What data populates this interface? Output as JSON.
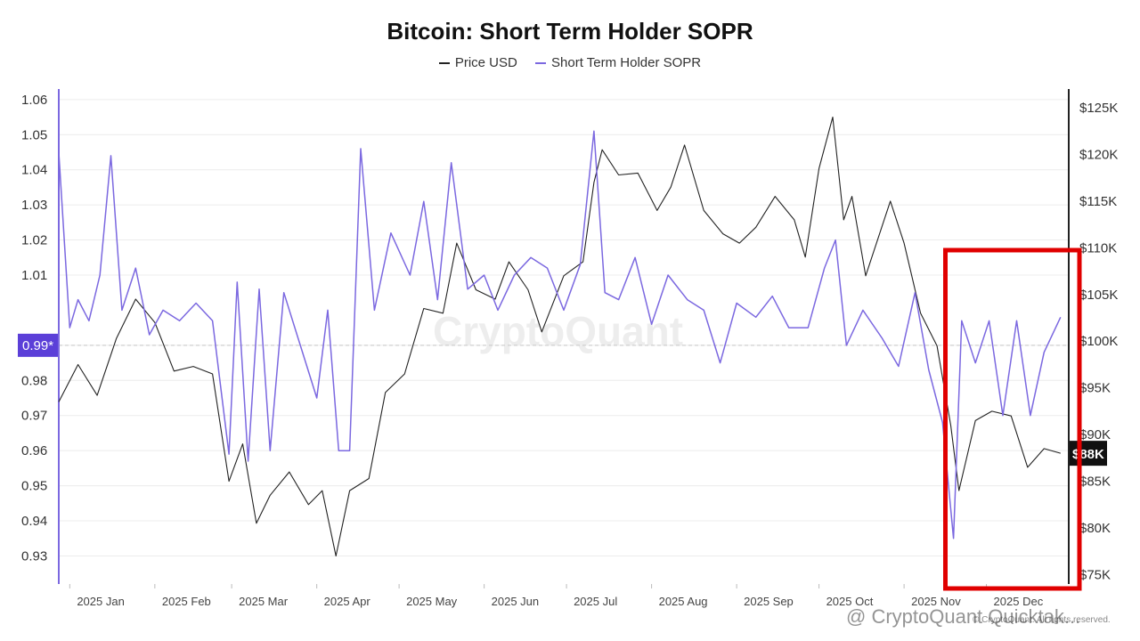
{
  "chart_data": {
    "type": "line",
    "title": "Bitcoin: Short Term Holder SOPR",
    "legend_position": "top-center",
    "grid": true,
    "x_ticks": [
      "2025 Jan",
      "2025 Feb",
      "2025 Mar",
      "2025 Apr",
      "2025 May",
      "2025 Jun",
      "2025 Jul",
      "2025 Aug",
      "2025 Sep",
      "2025 Oct",
      "2025 Nov",
      "2025 Dec"
    ],
    "x_range": [
      "2024-12-28",
      "2025-12-31"
    ],
    "left_axis": {
      "ticks": [
        "0.93",
        "0.94",
        "0.95",
        "0.96",
        "0.97",
        "0.98",
        "0.99",
        "1.01",
        "1.02",
        "1.03",
        "1.04",
        "1.05",
        "1.06"
      ],
      "ylim": [
        0.922,
        1.063
      ],
      "reference_value": 0.99,
      "reference_label": "0.99*"
    },
    "right_axis": {
      "ticks": [
        "$75K",
        "$80K",
        "$85K",
        "$90K",
        "$95K",
        "$100K",
        "$105K",
        "$110K",
        "$115K",
        "$120K",
        "$125K"
      ],
      "ylim": [
        74000,
        127000
      ],
      "current_label": "$88K",
      "current_value": 88000
    },
    "series": [
      {
        "name": "Price USD",
        "axis": "right",
        "color": "#222222",
        "x": [
          "2024-12-28",
          "2025-01-04",
          "2025-01-11",
          "2025-01-18",
          "2025-01-25",
          "2025-02-01",
          "2025-02-08",
          "2025-02-15",
          "2025-02-22",
          "2025-02-28",
          "2025-03-05",
          "2025-03-10",
          "2025-03-15",
          "2025-03-22",
          "2025-03-29",
          "2025-04-03",
          "2025-04-08",
          "2025-04-13",
          "2025-04-20",
          "2025-04-26",
          "2025-05-03",
          "2025-05-10",
          "2025-05-17",
          "2025-05-22",
          "2025-05-29",
          "2025-06-05",
          "2025-06-10",
          "2025-06-17",
          "2025-06-22",
          "2025-06-30",
          "2025-07-07",
          "2025-07-11",
          "2025-07-14",
          "2025-07-20",
          "2025-07-27",
          "2025-08-03",
          "2025-08-08",
          "2025-08-13",
          "2025-08-20",
          "2025-08-27",
          "2025-09-02",
          "2025-09-08",
          "2025-09-15",
          "2025-09-22",
          "2025-09-26",
          "2025-10-01",
          "2025-10-06",
          "2025-10-10",
          "2025-10-13",
          "2025-10-18",
          "2025-10-27",
          "2025-11-01",
          "2025-11-07",
          "2025-11-13",
          "2025-11-18",
          "2025-11-21",
          "2025-11-27",
          "2025-12-03",
          "2025-12-10",
          "2025-12-16",
          "2025-12-22",
          "2025-12-28"
        ],
        "y": [
          93500,
          97500,
          94200,
          100300,
          104500,
          102000,
          96800,
          97300,
          96500,
          85000,
          89000,
          80500,
          83500,
          86000,
          82500,
          84000,
          77000,
          84000,
          85300,
          94500,
          96500,
          103500,
          103000,
          110500,
          105500,
          104500,
          108500,
          105500,
          101000,
          107000,
          108500,
          117000,
          120500,
          117800,
          118000,
          114000,
          116500,
          121000,
          114000,
          111500,
          110500,
          112200,
          115500,
          113000,
          109000,
          118500,
          124000,
          113000,
          115500,
          107000,
          115000,
          110500,
          103000,
          99500,
          91000,
          84000,
          91500,
          92500,
          92000,
          86500,
          88500,
          88000
        ]
      },
      {
        "name": "Short Term Holder SOPR",
        "axis": "left",
        "color": "#7b68e0",
        "x": [
          "2024-12-28",
          "2025-01-01",
          "2025-01-04",
          "2025-01-08",
          "2025-01-12",
          "2025-01-16",
          "2025-01-20",
          "2025-01-25",
          "2025-01-30",
          "2025-02-04",
          "2025-02-10",
          "2025-02-16",
          "2025-02-22",
          "2025-02-28",
          "2025-03-03",
          "2025-03-07",
          "2025-03-11",
          "2025-03-15",
          "2025-03-20",
          "2025-03-26",
          "2025-04-01",
          "2025-04-05",
          "2025-04-09",
          "2025-04-13",
          "2025-04-17",
          "2025-04-22",
          "2025-04-28",
          "2025-05-05",
          "2025-05-10",
          "2025-05-15",
          "2025-05-20",
          "2025-05-26",
          "2025-06-01",
          "2025-06-06",
          "2025-06-12",
          "2025-06-18",
          "2025-06-24",
          "2025-06-30",
          "2025-07-06",
          "2025-07-11",
          "2025-07-15",
          "2025-07-20",
          "2025-07-26",
          "2025-08-01",
          "2025-08-07",
          "2025-08-14",
          "2025-08-20",
          "2025-08-26",
          "2025-09-01",
          "2025-09-08",
          "2025-09-14",
          "2025-09-20",
          "2025-09-27",
          "2025-10-03",
          "2025-10-07",
          "2025-10-11",
          "2025-10-17",
          "2025-10-24",
          "2025-10-30",
          "2025-11-05",
          "2025-11-10",
          "2025-11-15",
          "2025-11-19",
          "2025-11-22",
          "2025-11-27",
          "2025-12-02",
          "2025-12-07",
          "2025-12-12",
          "2025-12-17",
          "2025-12-22",
          "2025-12-28"
        ],
        "y": [
          1.045,
          0.995,
          1.003,
          0.997,
          1.01,
          1.044,
          1.0,
          1.012,
          0.993,
          1.0,
          0.997,
          1.002,
          0.997,
          0.959,
          1.008,
          0.957,
          1.006,
          0.96,
          1.005,
          0.99,
          0.975,
          1.0,
          0.96,
          0.96,
          1.046,
          1.0,
          1.022,
          1.01,
          1.031,
          1.003,
          1.042,
          1.006,
          1.01,
          1.0,
          1.01,
          1.015,
          1.012,
          1.0,
          1.013,
          1.051,
          1.005,
          1.003,
          1.015,
          0.996,
          1.01,
          1.003,
          1.0,
          0.985,
          1.002,
          0.998,
          1.004,
          0.995,
          0.995,
          1.012,
          1.02,
          0.99,
          1.0,
          0.992,
          0.984,
          1.005,
          0.983,
          0.968,
          0.935,
          0.997,
          0.985,
          0.997,
          0.97,
          0.997,
          0.97,
          0.988,
          0.998
        ]
      }
    ],
    "annotation": {
      "type": "highlight-box",
      "color": "#e00000",
      "x_from": "2025-11-18",
      "x_to": "2025-12-31"
    }
  },
  "watermark": "CryptoQuant",
  "copyright": "© CryptoQuant. All rights reserved.",
  "source_watermark": "@ CryptoQuant Quicktak..."
}
